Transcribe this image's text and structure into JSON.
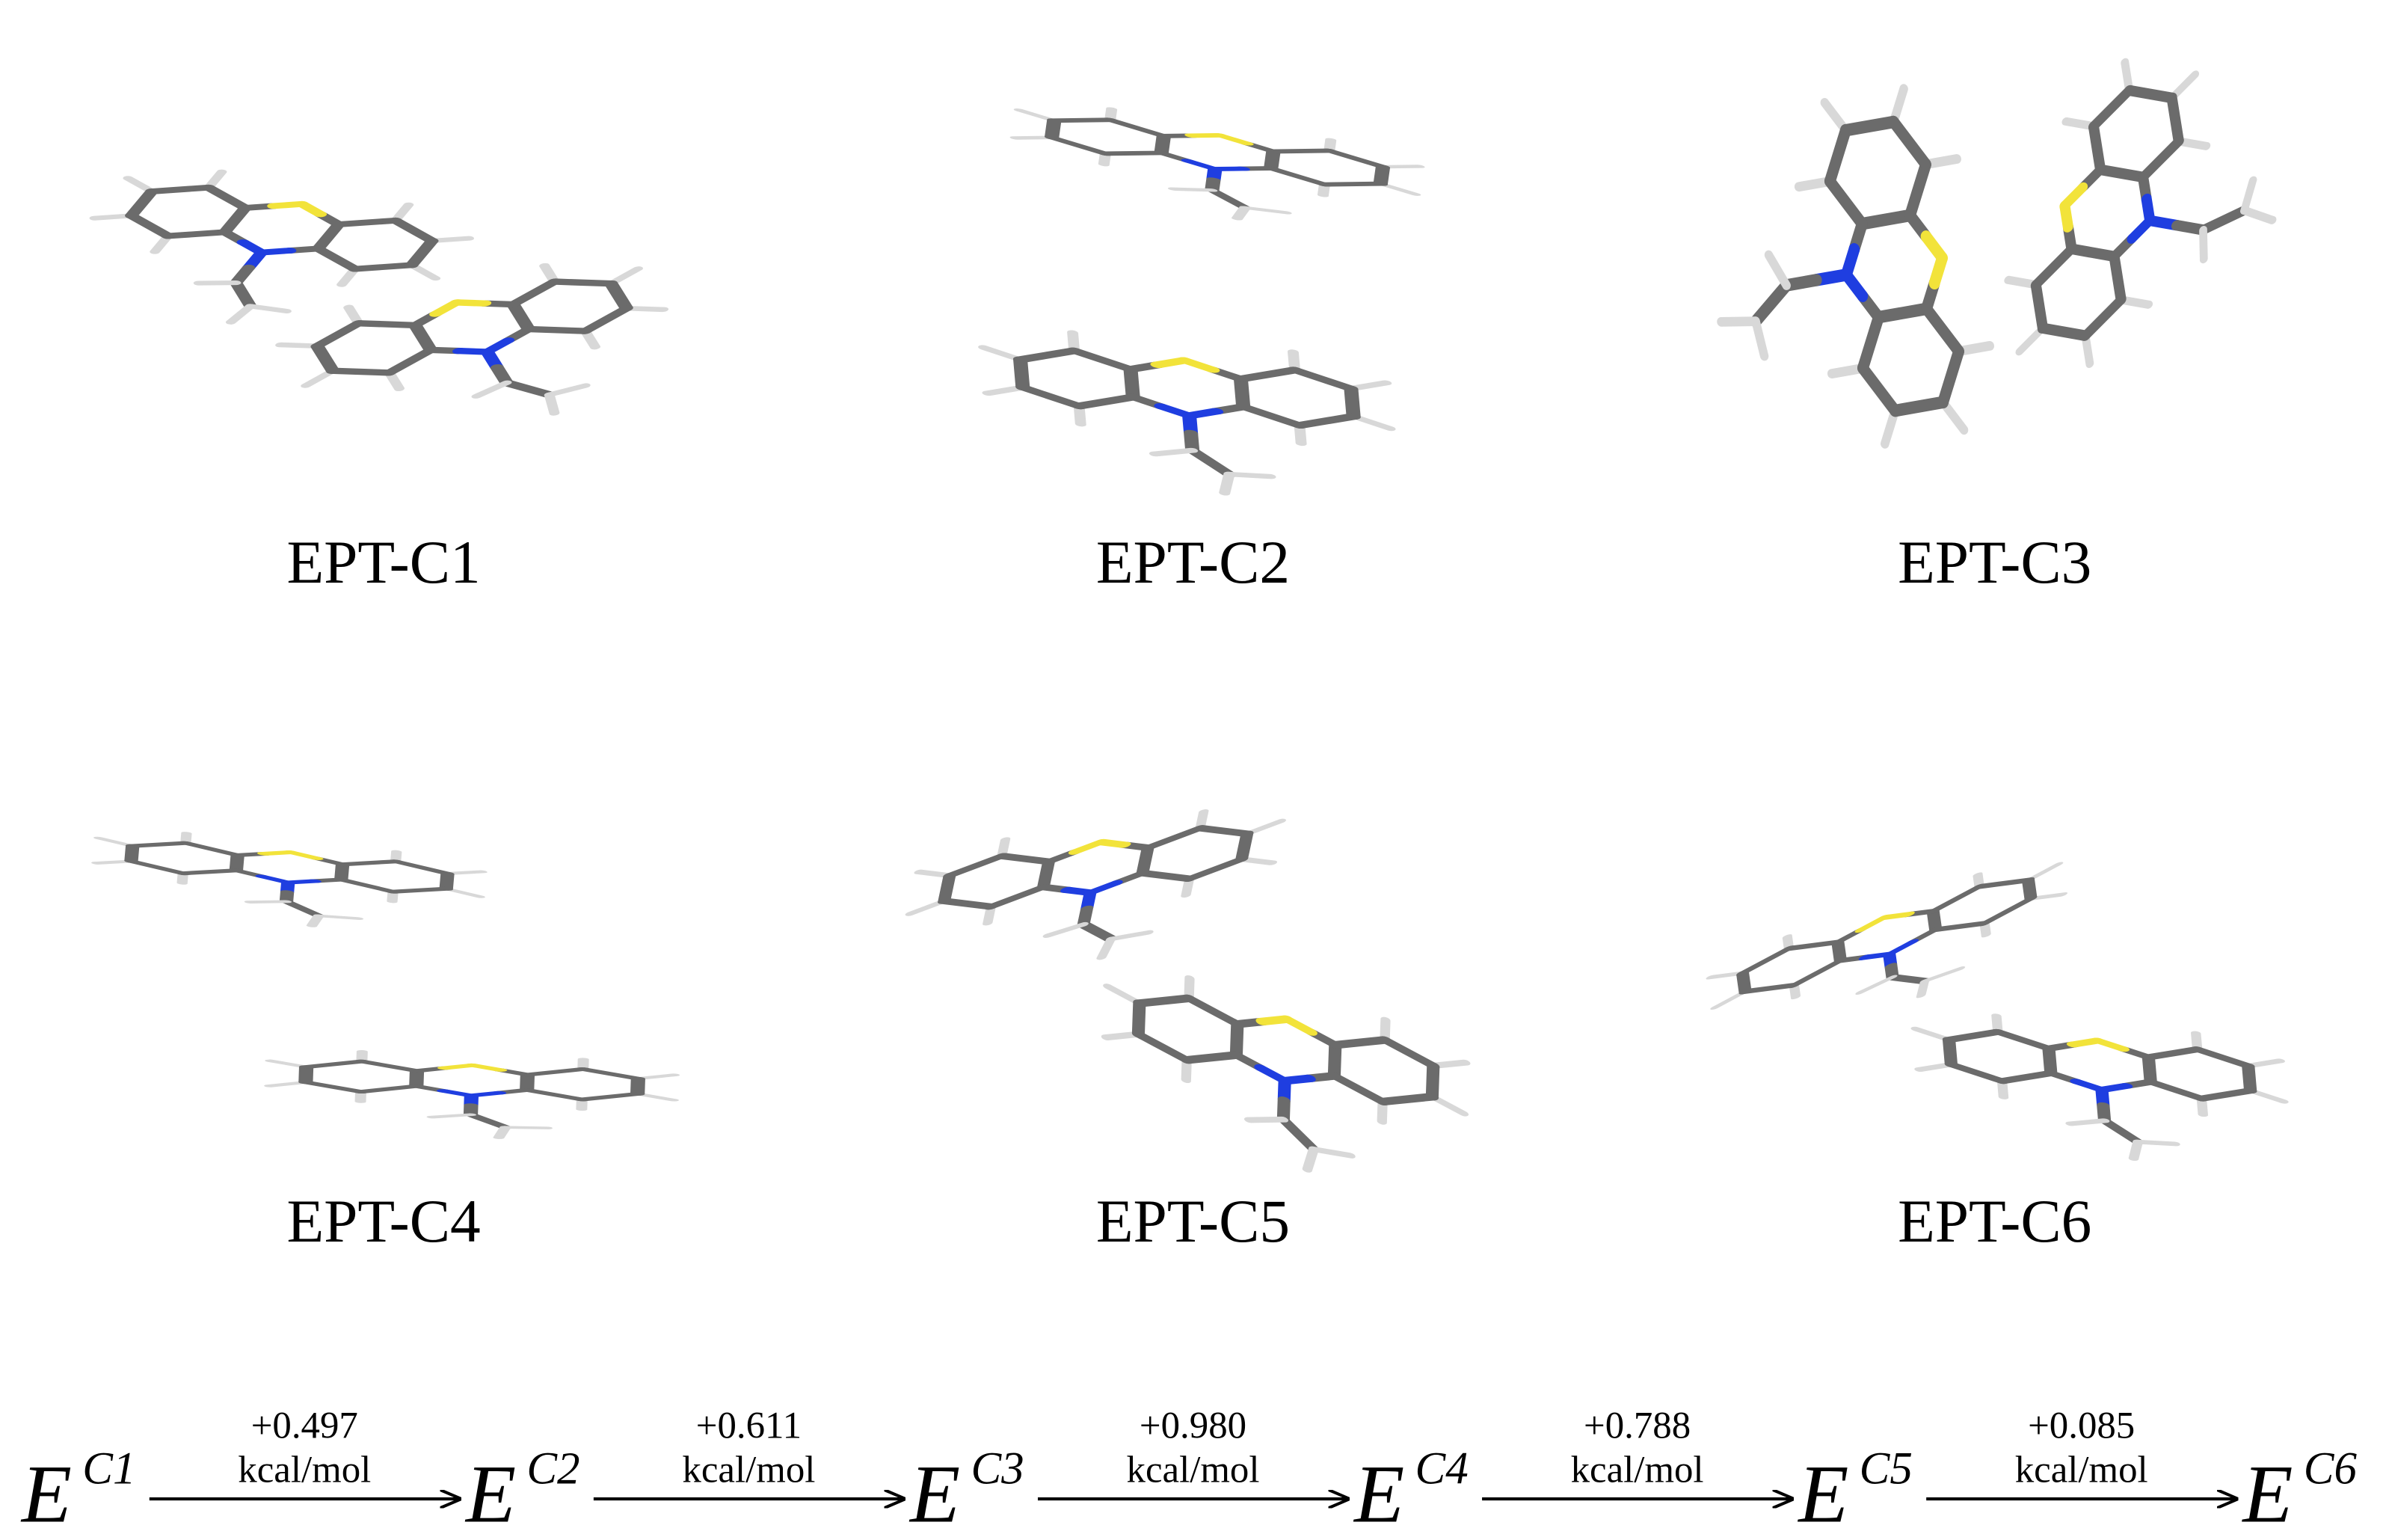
{
  "panels": [
    {
      "label": "EPT-C1"
    },
    {
      "label": "EPT-C2"
    },
    {
      "label": "EPT-C3"
    },
    {
      "label": "EPT-C4"
    },
    {
      "label": "EPT-C5"
    },
    {
      "label": "EPT-C6"
    }
  ],
  "scheme": {
    "terms": [
      {
        "base": "E",
        "sup": "C1"
      },
      {
        "base": "E",
        "sup": "C2"
      },
      {
        "base": "E",
        "sup": "C3"
      },
      {
        "base": "E",
        "sup": "C4"
      },
      {
        "base": "E",
        "sup": "C5"
      },
      {
        "base": "E",
        "sup": "C6"
      }
    ],
    "steps": [
      {
        "value": "+0.497",
        "unit": "kcal/mol"
      },
      {
        "value": "+0.611",
        "unit": "kcal/mol"
      },
      {
        "value": "+0.980",
        "unit": "kcal/mol"
      },
      {
        "value": "+0.788",
        "unit": "kcal/mol"
      },
      {
        "value": "+0.085",
        "unit": "kcal/mol"
      }
    ]
  }
}
